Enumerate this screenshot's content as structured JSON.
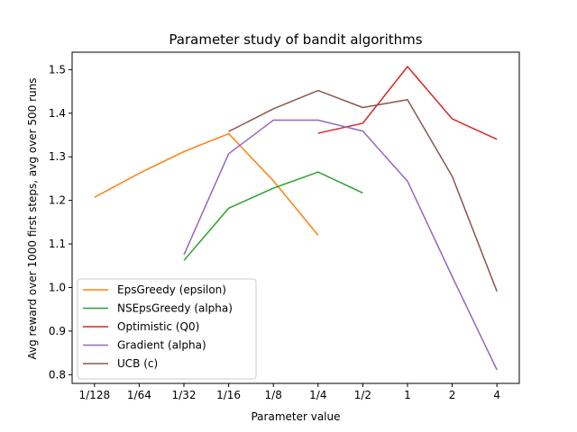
{
  "chart_data": {
    "type": "line",
    "title": "Parameter study of bandit algorithms",
    "xlabel": "Parameter value",
    "ylabel": "Avg reward over 1000 first steps, avg over 500 runs",
    "x_ticks": [
      "1/128",
      "1/64",
      "1/32",
      "1/16",
      "1/8",
      "1/4",
      "1/2",
      "1",
      "2",
      "4"
    ],
    "x_scale": "log2",
    "xlim": [
      -7.5,
      2.5
    ],
    "ylim": [
      0.78,
      1.54
    ],
    "y_ticks": [
      0.8,
      0.9,
      1.0,
      1.1,
      1.2,
      1.3,
      1.4,
      1.5
    ],
    "y_tick_labels": [
      "0.8",
      "0.9",
      "1.0",
      "1.1",
      "1.2",
      "1.3",
      "1.4",
      "1.5"
    ],
    "grid": false,
    "legend_position": "lower-left",
    "series": [
      {
        "name": "EpsGreedy (epsilon)",
        "color": "#ff7f0e",
        "x": [
          "1/128",
          "1/64",
          "1/32",
          "1/16",
          "1/8",
          "1/4"
        ],
        "values": [
          1.207,
          1.262,
          1.312,
          1.353,
          1.245,
          1.12
        ]
      },
      {
        "name": "NSEpsGreedy (alpha)",
        "color": "#2ca02c",
        "x": [
          "1/32",
          "1/16",
          "1/8",
          "1/4",
          "1/2"
        ],
        "values": [
          1.062,
          1.182,
          1.228,
          1.265,
          1.217
        ]
      },
      {
        "name": "Optimistic (Q0)",
        "color": "#d62728",
        "x": [
          "1/4",
          "1/2",
          "1",
          "2",
          "4"
        ],
        "values": [
          1.354,
          1.377,
          1.507,
          1.387,
          1.34
        ]
      },
      {
        "name": "Gradient (alpha)",
        "color": "#9467bd",
        "x": [
          "1/32",
          "1/16",
          "1/8",
          "1/4",
          "1/2",
          "1",
          "2",
          "4"
        ],
        "values": [
          1.075,
          1.307,
          1.384,
          1.384,
          1.359,
          1.244,
          1.025,
          0.811
        ]
      },
      {
        "name": "UCB (c)",
        "color": "#8c564b",
        "x": [
          "1/16",
          "1/8",
          "1/4",
          "1/2",
          "1",
          "2",
          "4"
        ],
        "values": [
          1.358,
          1.41,
          1.452,
          1.413,
          1.431,
          1.255,
          0.991
        ]
      }
    ]
  }
}
